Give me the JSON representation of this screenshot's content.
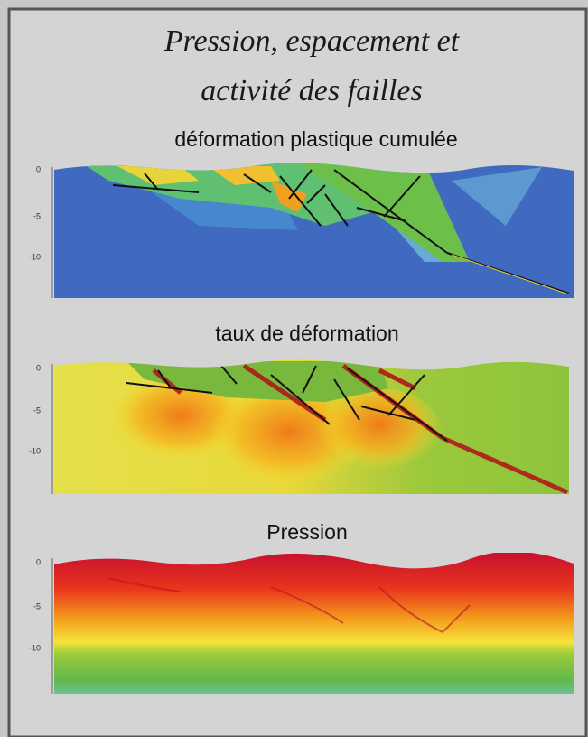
{
  "header": {
    "title": [
      "Pression, espacement et",
      "activité des failles"
    ]
  },
  "panels": [
    {
      "title": "déformation plastique cumulée",
      "yticks": [
        0,
        -5,
        -10
      ]
    },
    {
      "title": "taux de déformation",
      "yticks": [
        0,
        -5,
        -10
      ]
    },
    {
      "title": "Pression",
      "yticks": [
        0,
        -5,
        -10
      ]
    }
  ]
}
